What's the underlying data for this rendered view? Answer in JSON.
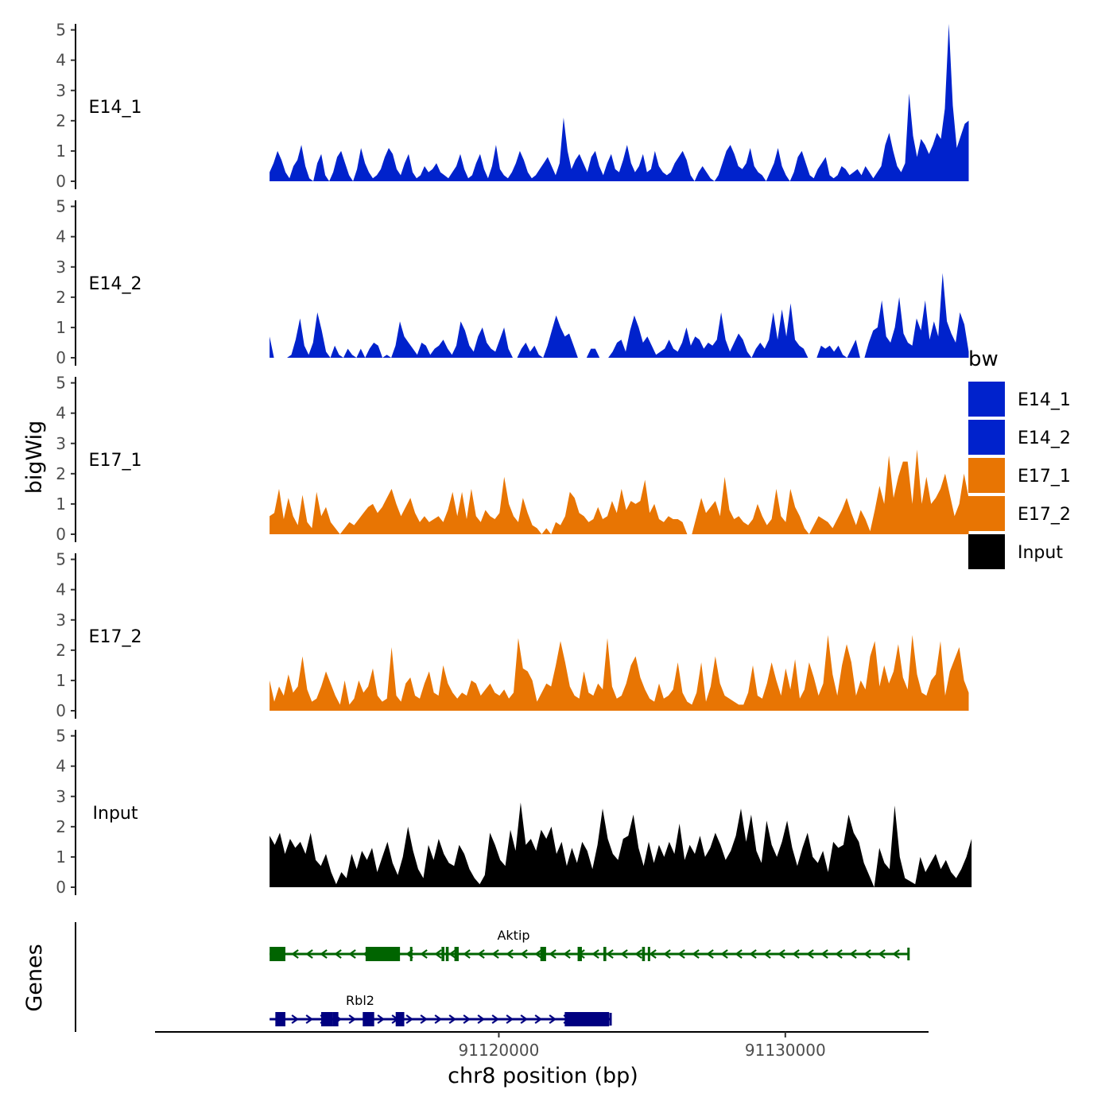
{
  "chart_data": {
    "type": "area",
    "xlabel": "chr8 position (bp)",
    "ylabel": "bigWig",
    "genes_label": "Genes",
    "xlim": [
      91108000,
      91135000
    ],
    "ylim": [
      0,
      5.2
    ],
    "x_ticks": [
      91120000,
      91130000
    ],
    "x_tick_labels": [
      "91120000",
      "91130000"
    ],
    "y_ticks": [
      0,
      1,
      2,
      3,
      4,
      5
    ],
    "y_tick_labels": [
      "0",
      "1",
      "2",
      "3",
      "4",
      "5"
    ],
    "legend": {
      "title": "bw",
      "position": "right",
      "entries": [
        {
          "label": "E14_1",
          "color": "#0022CC"
        },
        {
          "label": "E14_2",
          "color": "#0022CC"
        },
        {
          "label": "E17_1",
          "color": "#E87503"
        },
        {
          "label": "E17_2",
          "color": "#E87503"
        },
        {
          "label": "Input",
          "color": "#000000"
        }
      ]
    },
    "series": [
      {
        "name": "E14_1",
        "color": "#0022CC",
        "x_start": 91112000,
        "x_end": 91136400,
        "values": [
          0.3,
          0.6,
          1.0,
          0.7,
          0.3,
          0.1,
          0.5,
          0.7,
          1.2,
          0.5,
          0.1,
          0.0,
          0.6,
          0.9,
          0.2,
          0.0,
          0.3,
          0.8,
          1.0,
          0.6,
          0.2,
          0.0,
          0.4,
          1.1,
          0.6,
          0.3,
          0.1,
          0.2,
          0.4,
          0.8,
          1.1,
          0.9,
          0.4,
          0.2,
          0.6,
          0.9,
          0.3,
          0.1,
          0.2,
          0.5,
          0.3,
          0.4,
          0.6,
          0.3,
          0.2,
          0.1,
          0.3,
          0.5,
          0.9,
          0.4,
          0.1,
          0.2,
          0.6,
          0.9,
          0.4,
          0.1,
          0.5,
          1.2,
          0.4,
          0.2,
          0.1,
          0.3,
          0.6,
          1.0,
          0.7,
          0.3,
          0.1,
          0.2,
          0.4,
          0.6,
          0.8,
          0.5,
          0.2,
          0.6,
          2.1,
          1.0,
          0.4,
          0.7,
          0.9,
          0.6,
          0.3,
          0.8,
          1.0,
          0.5,
          0.2,
          0.6,
          0.9,
          0.4,
          0.3,
          0.7,
          1.2,
          0.6,
          0.3,
          0.5,
          0.9,
          0.3,
          0.4,
          1.0,
          0.5,
          0.3,
          0.2,
          0.3,
          0.6,
          0.8,
          1.0,
          0.7,
          0.2,
          0.0,
          0.3,
          0.5,
          0.3,
          0.1,
          0.0,
          0.2,
          0.6,
          1.0,
          1.2,
          0.9,
          0.5,
          0.4,
          0.6,
          1.1,
          0.5,
          0.3,
          0.2,
          0.0,
          0.3,
          0.6,
          1.1,
          0.5,
          0.2,
          0.0,
          0.3,
          0.8,
          1.0,
          0.6,
          0.2,
          0.1,
          0.4,
          0.6,
          0.8,
          0.2,
          0.1,
          0.2,
          0.5,
          0.4,
          0.2,
          0.3,
          0.4,
          0.2,
          0.5,
          0.3,
          0.1,
          0.3,
          0.5,
          1.2,
          1.6,
          1.0,
          0.5,
          0.3,
          0.6,
          2.9,
          1.5,
          0.8,
          1.4,
          1.2,
          0.9,
          1.2,
          1.6,
          1.4,
          2.4,
          5.2,
          2.5,
          1.1,
          1.5,
          1.9,
          2.0
        ]
      },
      {
        "name": "E14_2",
        "color": "#0022CC",
        "x_start": 91112000,
        "x_end": 91136400,
        "values": [
          0.7,
          0.0,
          0.0,
          0.0,
          0.0,
          0.1,
          0.6,
          1.3,
          0.4,
          0.1,
          0.5,
          1.5,
          0.9,
          0.2,
          0.0,
          0.4,
          0.1,
          0.0,
          0.3,
          0.1,
          0.0,
          0.3,
          0.0,
          0.3,
          0.5,
          0.4,
          0.0,
          0.1,
          0.0,
          0.4,
          1.2,
          0.7,
          0.5,
          0.3,
          0.1,
          0.5,
          0.4,
          0.1,
          0.3,
          0.4,
          0.6,
          0.3,
          0.1,
          0.4,
          1.2,
          0.9,
          0.4,
          0.2,
          0.7,
          1.0,
          0.5,
          0.3,
          0.2,
          0.6,
          1.0,
          0.3,
          0.0,
          0.0,
          0.3,
          0.5,
          0.2,
          0.4,
          0.1,
          0.0,
          0.4,
          0.9,
          1.4,
          1.0,
          0.7,
          0.8,
          0.4,
          0.0,
          0.0,
          0.0,
          0.3,
          0.3,
          0.0,
          0.0,
          0.0,
          0.2,
          0.5,
          0.6,
          0.2,
          0.9,
          1.4,
          1.0,
          0.5,
          0.7,
          0.4,
          0.1,
          0.2,
          0.3,
          0.6,
          0.3,
          0.2,
          0.5,
          1.0,
          0.4,
          0.7,
          0.6,
          0.3,
          0.5,
          0.4,
          0.6,
          1.5,
          0.6,
          0.2,
          0.5,
          0.8,
          0.6,
          0.2,
          0.0,
          0.3,
          0.5,
          0.3,
          0.6,
          1.5,
          0.6,
          1.6,
          0.7,
          1.8,
          0.6,
          0.4,
          0.3,
          0.0,
          0.0,
          0.0,
          0.4,
          0.3,
          0.4,
          0.2,
          0.4,
          0.1,
          0.0,
          0.3,
          0.6,
          0.0,
          0.0,
          0.5,
          0.9,
          1.0,
          1.9,
          0.7,
          0.5,
          1.0,
          2.0,
          0.8,
          0.5,
          0.4,
          1.3,
          0.9,
          1.9,
          0.6,
          1.2,
          0.7,
          2.8,
          1.2,
          0.8,
          0.5,
          1.5,
          1.1,
          0.2
        ]
      },
      {
        "name": "E17_1",
        "color": "#E87503",
        "x_start": 91112000,
        "x_end": 91136400,
        "values": [
          0.6,
          0.7,
          1.5,
          0.5,
          1.2,
          0.6,
          0.3,
          1.3,
          0.4,
          0.2,
          1.4,
          0.6,
          0.9,
          0.4,
          0.2,
          0.0,
          0.2,
          0.4,
          0.3,
          0.5,
          0.7,
          0.9,
          1.0,
          0.7,
          0.9,
          1.2,
          1.5,
          1.0,
          0.6,
          0.9,
          1.2,
          0.7,
          0.4,
          0.6,
          0.4,
          0.5,
          0.6,
          0.4,
          0.8,
          1.4,
          0.6,
          1.4,
          0.5,
          1.5,
          0.6,
          0.4,
          0.8,
          0.6,
          0.5,
          0.7,
          1.9,
          1.0,
          0.6,
          0.4,
          1.2,
          0.7,
          0.3,
          0.2,
          0.0,
          0.2,
          0.0,
          0.4,
          0.3,
          0.6,
          1.4,
          1.2,
          0.7,
          0.6,
          0.4,
          0.5,
          0.9,
          0.5,
          0.6,
          1.1,
          0.7,
          1.5,
          0.8,
          1.1,
          1.0,
          1.1,
          1.8,
          0.7,
          1.0,
          0.5,
          0.4,
          0.6,
          0.5,
          0.5,
          0.4,
          0.0,
          0.0,
          0.6,
          1.2,
          0.7,
          0.9,
          1.1,
          0.6,
          1.9,
          0.8,
          0.5,
          0.6,
          0.4,
          0.3,
          0.5,
          1.0,
          0.6,
          0.3,
          0.5,
          1.5,
          0.6,
          0.4,
          1.5,
          0.9,
          0.6,
          0.2,
          0.0,
          0.3,
          0.6,
          0.5,
          0.4,
          0.2,
          0.5,
          0.8,
          1.2,
          0.7,
          0.3,
          0.8,
          0.5,
          0.1,
          0.8,
          1.6,
          1.0,
          2.6,
          1.2,
          1.9,
          2.4,
          2.4,
          1.0,
          2.8,
          1.0,
          1.9,
          1.0,
          1.2,
          1.5,
          2.0,
          1.3,
          0.6,
          1.0,
          2.0,
          1.2
        ]
      },
      {
        "name": "E17_2",
        "color": "#E87503",
        "x_start": 91112000,
        "x_end": 91136400,
        "values": [
          1.0,
          0.3,
          0.8,
          0.5,
          1.2,
          0.6,
          0.8,
          1.8,
          0.7,
          0.3,
          0.4,
          0.8,
          1.3,
          0.9,
          0.5,
          0.2,
          1.0,
          0.2,
          0.4,
          1.0,
          0.6,
          0.8,
          1.4,
          0.5,
          0.3,
          0.4,
          2.1,
          0.5,
          0.3,
          0.9,
          1.1,
          0.5,
          0.4,
          0.9,
          1.3,
          0.6,
          0.5,
          1.5,
          0.9,
          0.6,
          0.4,
          0.6,
          0.5,
          1.0,
          0.9,
          0.5,
          0.7,
          0.9,
          0.6,
          0.5,
          0.7,
          0.4,
          0.6,
          2.4,
          1.4,
          1.3,
          1.0,
          0.3,
          0.6,
          0.9,
          0.8,
          1.5,
          2.3,
          1.6,
          0.8,
          0.5,
          0.4,
          1.3,
          0.6,
          0.5,
          0.9,
          0.7,
          2.4,
          0.8,
          0.4,
          0.5,
          0.9,
          1.5,
          1.8,
          1.1,
          0.7,
          0.4,
          0.3,
          0.9,
          0.4,
          0.5,
          0.7,
          1.6,
          0.6,
          0.3,
          0.2,
          0.6,
          1.6,
          0.3,
          0.8,
          1.8,
          0.9,
          0.5,
          0.4,
          0.3,
          0.2,
          0.2,
          0.6,
          1.5,
          0.5,
          0.4,
          0.9,
          1.6,
          1.0,
          0.5,
          1.4,
          0.7,
          1.7,
          0.4,
          0.7,
          1.6,
          1.1,
          0.5,
          0.9,
          2.5,
          1.2,
          0.5,
          1.5,
          2.2,
          1.6,
          0.5,
          1.0,
          0.7,
          1.8,
          2.3,
          0.8,
          1.5,
          0.9,
          1.3,
          2.2,
          1.1,
          0.7,
          2.5,
          1.2,
          0.6,
          0.5,
          1.0,
          1.2,
          2.3,
          0.5,
          1.3,
          1.7,
          2.1,
          1.0,
          0.6
        ]
      },
      {
        "name": "Input",
        "color": "#000000",
        "x_start": 91112000,
        "x_end": 91136500,
        "values": [
          1.7,
          1.4,
          1.8,
          1.1,
          1.6,
          1.3,
          1.5,
          1.1,
          1.8,
          0.9,
          0.7,
          1.1,
          0.5,
          0.1,
          0.5,
          0.3,
          1.1,
          0.6,
          1.2,
          0.9,
          1.3,
          0.5,
          1.0,
          1.5,
          0.8,
          0.4,
          1.0,
          2.0,
          1.2,
          0.6,
          0.3,
          1.4,
          0.9,
          1.6,
          1.1,
          0.8,
          0.7,
          1.4,
          1.1,
          0.6,
          0.3,
          0.1,
          0.4,
          1.8,
          1.4,
          0.9,
          0.7,
          1.9,
          1.2,
          2.8,
          1.4,
          1.6,
          1.2,
          1.9,
          1.6,
          2.0,
          1.1,
          1.5,
          0.7,
          1.3,
          0.8,
          1.5,
          1.2,
          0.6,
          1.4,
          2.6,
          1.6,
          1.1,
          0.9,
          1.6,
          1.7,
          2.4,
          1.3,
          0.7,
          1.5,
          0.8,
          1.4,
          1.0,
          1.5,
          1.1,
          2.1,
          0.9,
          1.4,
          1.1,
          1.7,
          1.0,
          1.3,
          1.8,
          1.4,
          0.9,
          1.2,
          1.7,
          2.6,
          1.5,
          2.4,
          1.2,
          0.8,
          2.2,
          1.4,
          1.0,
          1.5,
          2.2,
          1.3,
          0.7,
          1.3,
          1.8,
          1.0,
          0.8,
          1.2,
          0.5,
          1.5,
          1.3,
          1.4,
          2.4,
          1.8,
          1.5,
          0.8,
          0.4,
          0.0,
          1.3,
          0.8,
          0.6,
          2.7,
          1.0,
          0.3,
          0.2,
          0.1,
          1.0,
          0.5,
          0.8,
          1.1,
          0.6,
          0.9,
          0.5,
          0.3,
          0.6,
          1.0,
          1.6
        ]
      }
    ],
    "genes": [
      {
        "name": "Aktip",
        "color": "#006400",
        "strand": "-",
        "row": 1,
        "start": 91112000,
        "end": 91134300,
        "exons": [
          [
            91112000,
            91112550
          ],
          [
            91115350,
            91116550
          ],
          [
            91116900,
            91116950
          ],
          [
            91118000,
            91118100
          ],
          [
            91118150,
            91118250
          ],
          [
            91118450,
            91118600
          ],
          [
            91121450,
            91121650
          ],
          [
            91122750,
            91122900
          ],
          [
            91123650,
            91123750
          ],
          [
            91125000,
            91125100
          ],
          [
            91125200,
            91125250
          ]
        ]
      },
      {
        "name": "Rbl2",
        "color": "#000080",
        "strand": "+",
        "row": 2,
        "start": 91112000,
        "end": 91123900,
        "exons": [
          [
            91112200,
            91112550
          ],
          [
            91113800,
            91114200
          ],
          [
            91114200,
            91114400
          ],
          [
            91115250,
            91115650
          ],
          [
            91116400,
            91116700
          ],
          [
            91122300,
            91123850
          ]
        ]
      }
    ]
  }
}
